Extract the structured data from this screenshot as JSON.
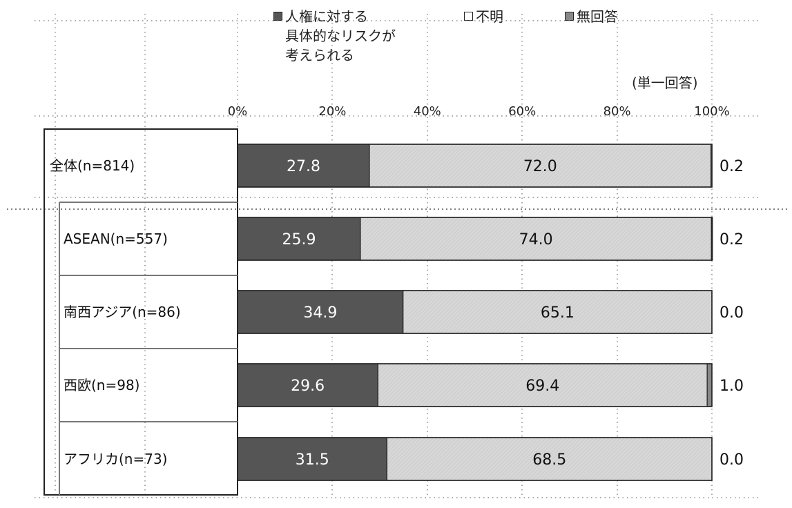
{
  "chart_data": {
    "type": "bar",
    "stacked": true,
    "orientation": "horizontal",
    "categories": [
      "全体(n=814)",
      "ASEAN(n=557)",
      "南西アジア(n=86)",
      "西欧(n=98)",
      "アフリカ(n=73)"
    ],
    "series": [
      {
        "name": "人権に対する\n具体的なリスクが\n考えられる",
        "values": [
          27.8,
          25.9,
          34.9,
          29.6,
          31.5
        ],
        "color": "#555555"
      },
      {
        "name": "不明",
        "values": [
          72.0,
          74.0,
          65.1,
          69.4,
          68.5
        ],
        "color": "#d4d4d4"
      },
      {
        "name": "無回答",
        "values": [
          0.2,
          0.2,
          0.0,
          1.0,
          0.0
        ],
        "color": "#888888"
      }
    ],
    "outside_labels": [
      "0.2",
      "0.2",
      "0.0",
      "1.0",
      "0.0"
    ],
    "value_labels": [
      [
        "27.8",
        "72.0"
      ],
      [
        "25.9",
        "74.0"
      ],
      [
        "34.9",
        "65.1"
      ],
      [
        "29.6",
        "69.4"
      ],
      [
        "31.5",
        "68.5"
      ]
    ],
    "x_ticks": [
      "0%",
      "20%",
      "40%",
      "60%",
      "80%",
      "100%"
    ],
    "xlim": [
      0,
      100
    ],
    "legend_position": "top",
    "grid": "dotted vertical"
  },
  "note": "(単一回答)"
}
